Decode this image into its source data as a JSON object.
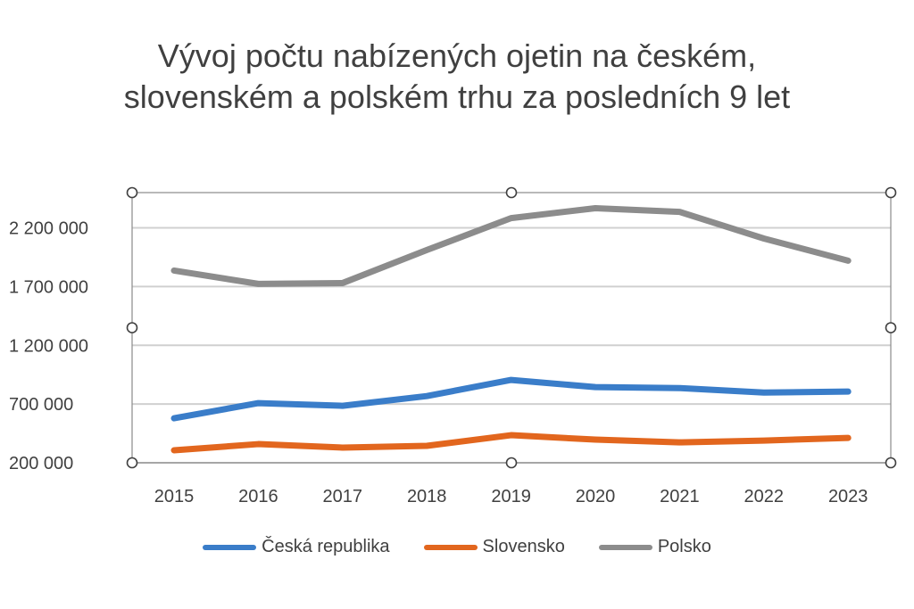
{
  "chart_data": {
    "type": "line",
    "title_lines": [
      "Vývoj počtu nabízených ojetin na českém,",
      "slovenském a polském trhu za posledních 9 let"
    ],
    "categories": [
      "2015",
      "2016",
      "2017",
      "2018",
      "2019",
      "2020",
      "2021",
      "2022",
      "2023"
    ],
    "y_ticks": [
      200000,
      700000,
      1200000,
      1700000,
      2200000
    ],
    "y_tick_labels": [
      "200 000",
      "700 000",
      "1 200 000",
      "1 700 000",
      "2 200 000"
    ],
    "ylim": [
      200000,
      2500000
    ],
    "grid": true,
    "legend_position": "bottom",
    "series": [
      {
        "name": "Česká republika",
        "color": "#3A7DC9",
        "values": [
          579000,
          708000,
          685000,
          768000,
          905000,
          844000,
          836000,
          798000,
          806000
        ]
      },
      {
        "name": "Slovensko",
        "color": "#E2661E",
        "values": [
          306000,
          359000,
          329000,
          344000,
          435000,
          397000,
          374000,
          389000,
          412000
        ]
      },
      {
        "name": "Polsko",
        "color": "#8C8C8C",
        "values": [
          1836000,
          1723000,
          1730000,
          2011000,
          2283000,
          2367000,
          2336000,
          2109000,
          1920000
        ]
      }
    ]
  }
}
